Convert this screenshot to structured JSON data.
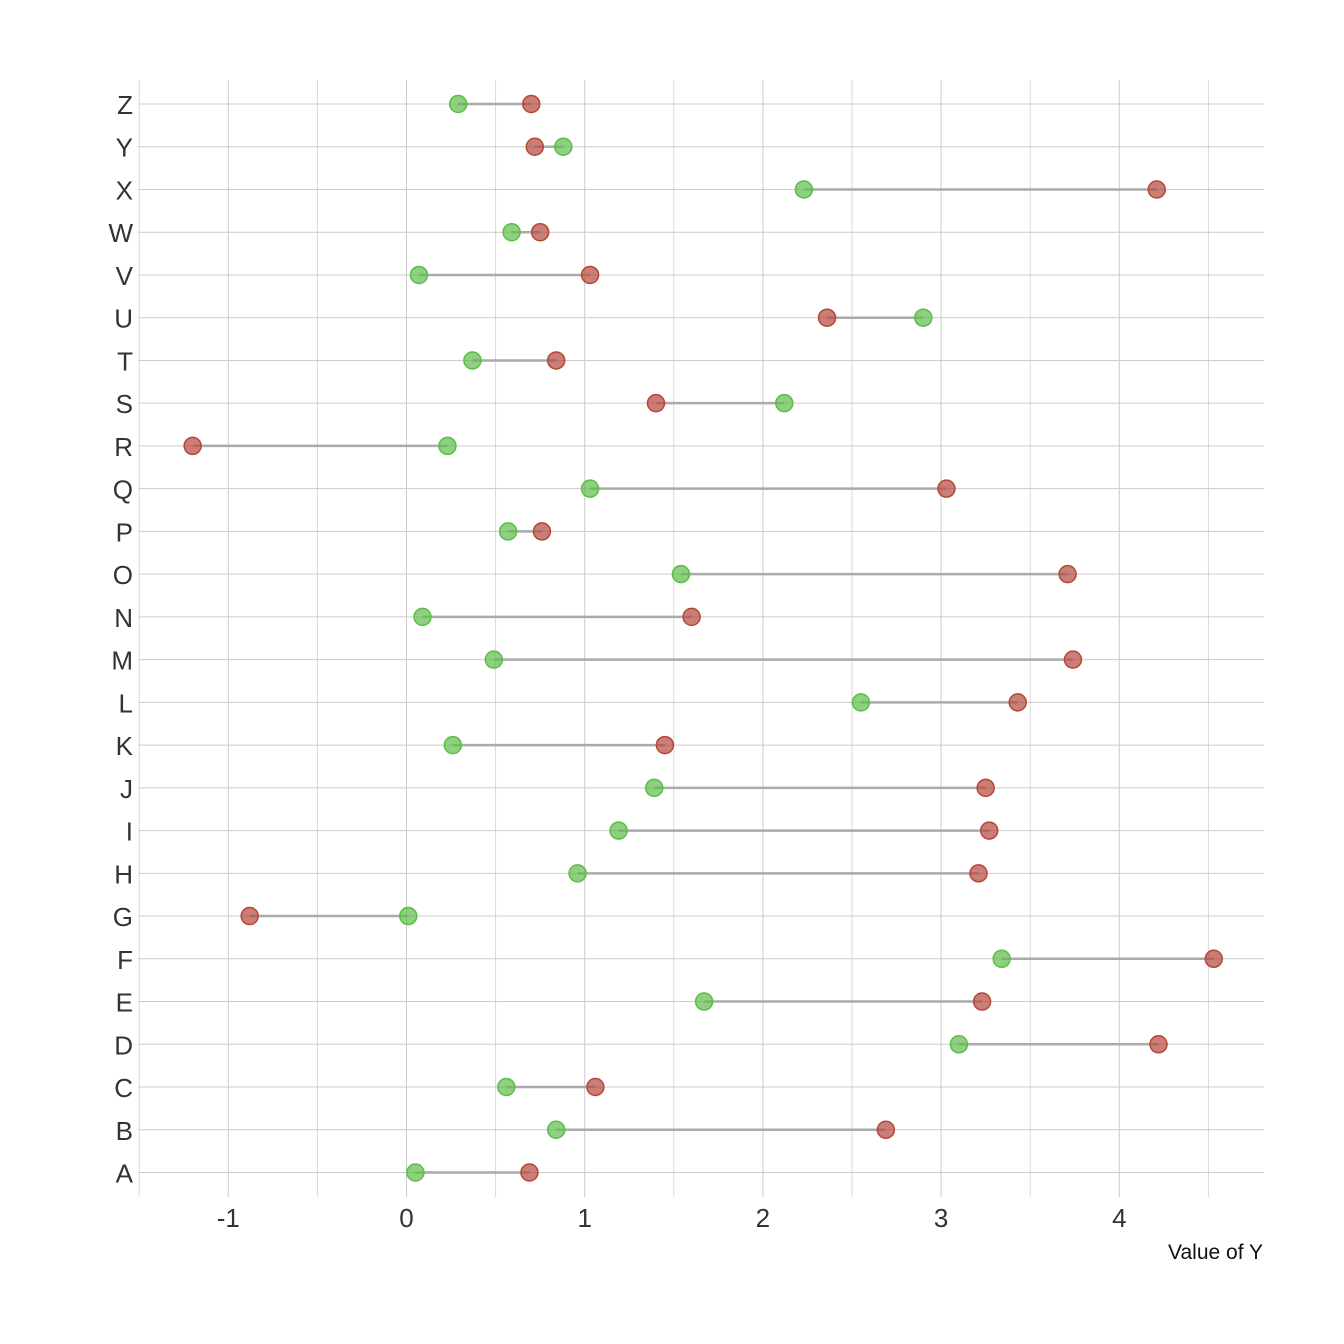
{
  "chart_data": {
    "type": "dumbbell",
    "title": "",
    "xlabel": "Value of Y",
    "ylabel": "",
    "xlim": [
      -1.5,
      4.8
    ],
    "x_ticks": [
      -1,
      0,
      1,
      2,
      3,
      4
    ],
    "x_tick_labels": [
      "-1",
      "0",
      "1",
      "2",
      "3",
      "4"
    ],
    "grid": true,
    "legend": "none",
    "colors": {
      "green": "#5cbd4a",
      "red": "#b5473a",
      "segment": "#aaaaaa"
    },
    "categories": [
      "A",
      "B",
      "C",
      "D",
      "E",
      "F",
      "G",
      "H",
      "I",
      "J",
      "K",
      "L",
      "M",
      "N",
      "O",
      "P",
      "Q",
      "R",
      "S",
      "T",
      "U",
      "V",
      "W",
      "X",
      "Y",
      "Z"
    ],
    "series": [
      {
        "color": "green",
        "values": [
          0.05,
          0.84,
          0.56,
          3.1,
          1.67,
          3.34,
          0.01,
          0.96,
          1.19,
          1.39,
          0.26,
          2.55,
          0.49,
          0.09,
          1.54,
          0.57,
          1.03,
          0.23,
          2.12,
          0.37,
          2.9,
          0.07,
          0.59,
          2.23,
          0.88,
          0.29
        ]
      },
      {
        "color": "red",
        "values": [
          0.69,
          2.69,
          1.06,
          4.22,
          3.23,
          4.53,
          -0.88,
          3.21,
          3.27,
          3.25,
          1.45,
          3.43,
          3.74,
          1.6,
          3.71,
          0.76,
          3.03,
          -1.2,
          1.4,
          0.84,
          2.36,
          1.03,
          0.75,
          4.21,
          0.72,
          0.7
        ]
      }
    ]
  }
}
